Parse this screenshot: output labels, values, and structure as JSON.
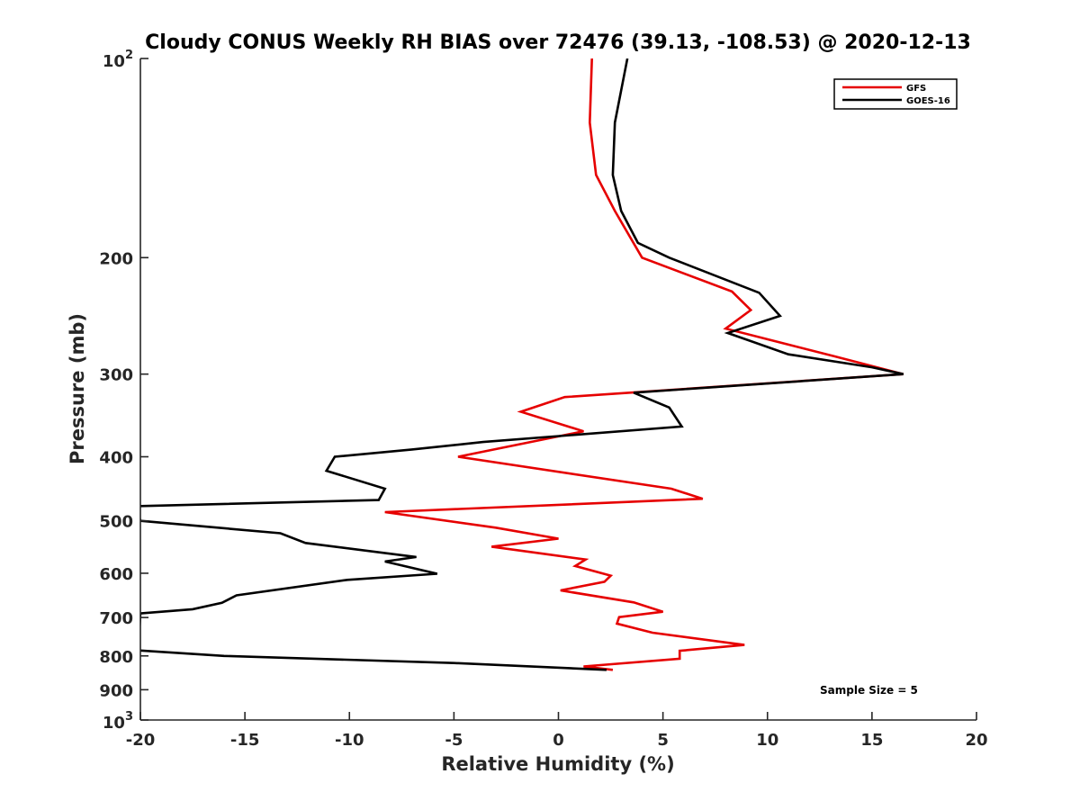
{
  "chart_data": {
    "type": "line",
    "title": "Cloudy CONUS Weekly RH BIAS over 72476 (39.13, -108.53) @ 2020-12-13",
    "xlabel": "Relative Humidity (%)",
    "ylabel": "Pressure (mb)",
    "xlim": [
      -20,
      20
    ],
    "ylim": [
      1000,
      100
    ],
    "y_scale": "log",
    "y_reversed": true,
    "x_ticks": [
      -20,
      -15,
      -10,
      -5,
      0,
      5,
      10,
      15,
      20
    ],
    "x_tick_labels": [
      "-20",
      "-15",
      "-10",
      "-5",
      "0",
      "5",
      "10",
      "15",
      "20"
    ],
    "y_ticks": [
      100,
      200,
      300,
      400,
      500,
      600,
      700,
      800,
      900,
      1000
    ],
    "y_tick_labels": [
      {
        "base": "10",
        "exp": "2"
      },
      {
        "base": "200",
        "exp": ""
      },
      {
        "base": "300",
        "exp": ""
      },
      {
        "base": "400",
        "exp": ""
      },
      {
        "base": "500",
        "exp": ""
      },
      {
        "base": "600",
        "exp": ""
      },
      {
        "base": "700",
        "exp": ""
      },
      {
        "base": "800",
        "exp": ""
      },
      {
        "base": "900",
        "exp": ""
      },
      {
        "base": "10",
        "exp": "3"
      }
    ],
    "grid": false,
    "legend_position": "top-right",
    "annotation": "Sample Size = 5",
    "series": [
      {
        "name": "GFS",
        "color": "#e60000",
        "points": [
          [
            1.6,
            100
          ],
          [
            1.5,
            125
          ],
          [
            1.8,
            150
          ],
          [
            2.7,
            170
          ],
          [
            4.0,
            200
          ],
          [
            8.3,
            225
          ],
          [
            9.2,
            240
          ],
          [
            8.0,
            256
          ],
          [
            13.2,
            282
          ],
          [
            16.5,
            300
          ],
          [
            0.3,
            325
          ],
          [
            -1.8,
            342
          ],
          [
            1.2,
            366
          ],
          [
            -4.8,
            400
          ],
          [
            5.4,
            447
          ],
          [
            6.9,
            463
          ],
          [
            -8.3,
            485
          ],
          [
            -3.0,
            512
          ],
          [
            0.0,
            532
          ],
          [
            -3.2,
            547
          ],
          [
            1.3,
            572
          ],
          [
            0.8,
            585
          ],
          [
            2.5,
            605
          ],
          [
            2.2,
            618
          ],
          [
            0.1,
            637
          ],
          [
            3.6,
            664
          ],
          [
            5.0,
            686
          ],
          [
            2.9,
            699
          ],
          [
            2.8,
            715
          ],
          [
            4.5,
            738
          ],
          [
            8.9,
            770
          ],
          [
            5.8,
            786
          ],
          [
            5.8,
            808
          ],
          [
            1.2,
            830
          ],
          [
            2.6,
            840
          ]
        ]
      },
      {
        "name": "GOES-16",
        "color": "#000000",
        "points": [
          [
            3.3,
            100
          ],
          [
            2.7,
            125
          ],
          [
            2.6,
            150
          ],
          [
            3.0,
            170
          ],
          [
            3.8,
            190
          ],
          [
            5.3,
            200
          ],
          [
            9.6,
            226
          ],
          [
            10.6,
            245
          ],
          [
            8.1,
            260
          ],
          [
            11.0,
            280
          ],
          [
            15.0,
            293
          ],
          [
            16.5,
            300
          ],
          [
            3.6,
            320
          ],
          [
            5.3,
            337
          ],
          [
            5.9,
            360
          ],
          [
            -3.6,
            380
          ],
          [
            -7.0,
            390
          ],
          [
            -10.7,
            400
          ],
          [
            -11.1,
            420
          ],
          [
            -8.3,
            447
          ],
          [
            -8.6,
            465
          ],
          [
            -20.2,
            475
          ],
          [
            -20.0,
            500
          ],
          [
            -13.3,
            522
          ],
          [
            -12.1,
            540
          ],
          [
            -6.8,
            567
          ],
          [
            -8.3,
            576
          ],
          [
            -5.8,
            601
          ],
          [
            -10.1,
            614
          ],
          [
            -15.4,
            648
          ],
          [
            -16.1,
            665
          ],
          [
            -17.5,
            680
          ],
          [
            -20.0,
            690
          ],
          [
            -20.1,
            785
          ],
          [
            -16.0,
            800
          ],
          [
            -5.0,
            820
          ],
          [
            2.3,
            840
          ]
        ]
      }
    ]
  }
}
